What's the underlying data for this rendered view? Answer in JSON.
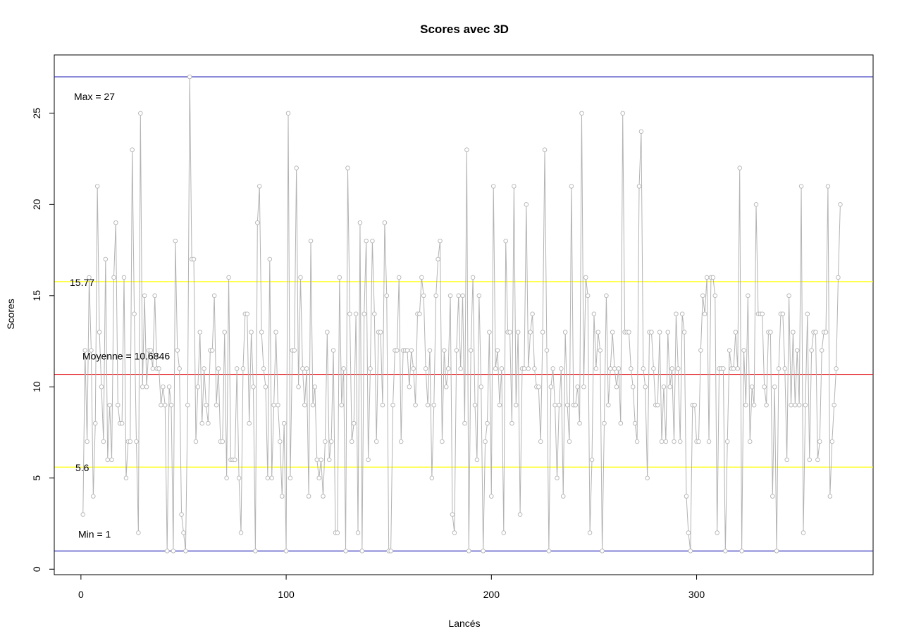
{
  "chart_data": {
    "type": "line",
    "title": "Scores avec 3D",
    "xlabel": "Lancés",
    "ylabel": "Scores",
    "xlim": [
      -13,
      386
    ],
    "ylim": [
      -0.3,
      28.2
    ],
    "xticks": [
      0,
      100,
      200,
      300
    ],
    "yticks": [
      0,
      5,
      10,
      15,
      20,
      25
    ],
    "grid": false,
    "legend": "none",
    "series": [
      {
        "style": "line-with-open-circles",
        "color": "#b3b3b3",
        "x_start": 1,
        "values": [
          3,
          12,
          7,
          16,
          12,
          4,
          8,
          21,
          13,
          10,
          7,
          17,
          6,
          9,
          6,
          16,
          19,
          9,
          8,
          8,
          16,
          5,
          7,
          7,
          23,
          14,
          7,
          2,
          25,
          10,
          15,
          10,
          12,
          12,
          11,
          15,
          11,
          11,
          9,
          10,
          9,
          1,
          10,
          9,
          1,
          18,
          12,
          11,
          3,
          2,
          1,
          9,
          27,
          17,
          17,
          7,
          10,
          13,
          8,
          11,
          9,
          8,
          12,
          12,
          15,
          9,
          11,
          7,
          7,
          13,
          5,
          16,
          6,
          6,
          6,
          11,
          5,
          2,
          11,
          14,
          14,
          8,
          13,
          10,
          1,
          19,
          21,
          13,
          11,
          10,
          5,
          17,
          5,
          9,
          13,
          9,
          7,
          4,
          8,
          1,
          25,
          5,
          12,
          12,
          22,
          10,
          16,
          11,
          9,
          11,
          4,
          18,
          9,
          10,
          6,
          5,
          6,
          4,
          7,
          13,
          6,
          7,
          12,
          2,
          2,
          16,
          9,
          11,
          1,
          22,
          14,
          7,
          8,
          14,
          2,
          19,
          1,
          14,
          18,
          6,
          11,
          18,
          14,
          7,
          13,
          13,
          9,
          19,
          15,
          1,
          1,
          9,
          12,
          12,
          16,
          7,
          12,
          12,
          12,
          10,
          12,
          11,
          9,
          14,
          14,
          16,
          15,
          11,
          9,
          12,
          5,
          9,
          15,
          17,
          18,
          7,
          12,
          10,
          11,
          15,
          3,
          2,
          12,
          15,
          11,
          15,
          8,
          23,
          1,
          12,
          16,
          9,
          6,
          15,
          10,
          1,
          7,
          8,
          13,
          4,
          21,
          11,
          12,
          9,
          11,
          2,
          18,
          13,
          13,
          8,
          21,
          9,
          13,
          3,
          11,
          11,
          20,
          11,
          13,
          14,
          11,
          10,
          10,
          7,
          13,
          23,
          12,
          1,
          10,
          11,
          9,
          5,
          9,
          11,
          4,
          13,
          9,
          7,
          21,
          9,
          9,
          10,
          8,
          25,
          10,
          16,
          15,
          2,
          6,
          14,
          11,
          13,
          12,
          1,
          8,
          15,
          9,
          11,
          13,
          11,
          10,
          11,
          8,
          25,
          13,
          13,
          13,
          11,
          10,
          8,
          7,
          21,
          24,
          11,
          10,
          5,
          13,
          13,
          11,
          9,
          9,
          13,
          7,
          10,
          7,
          13,
          10,
          11,
          7,
          14,
          11,
          7,
          14,
          13,
          4,
          2,
          1,
          9,
          9,
          7,
          7,
          12,
          15,
          14,
          16,
          7,
          16,
          16,
          15,
          2,
          11,
          11,
          11,
          1,
          7,
          12,
          11,
          11,
          13,
          11,
          22,
          1,
          12,
          9,
          15,
          7,
          10,
          9,
          20,
          14,
          14,
          14,
          10,
          9,
          13,
          13,
          4,
          10,
          1,
          11,
          14,
          14,
          11,
          6,
          15,
          9,
          13,
          9,
          12,
          9,
          21,
          2,
          9,
          14,
          6,
          12,
          13,
          13,
          6,
          7,
          12,
          13,
          13,
          21,
          4,
          7,
          9,
          11,
          16,
          20
        ]
      }
    ],
    "hlines": [
      {
        "y": 27,
        "color": "#1f1fb4",
        "label": "Max =  27"
      },
      {
        "y": 15.77,
        "color": "#ffff00",
        "label": "15.77"
      },
      {
        "y": 10.6846,
        "color": "#e31a1c",
        "label": "Moyenne =  10.6846"
      },
      {
        "y": 5.6,
        "color": "#ffff00",
        "label": "5.6"
      },
      {
        "y": 1,
        "color": "#1f1fb4",
        "label": "Min =  1"
      }
    ]
  }
}
